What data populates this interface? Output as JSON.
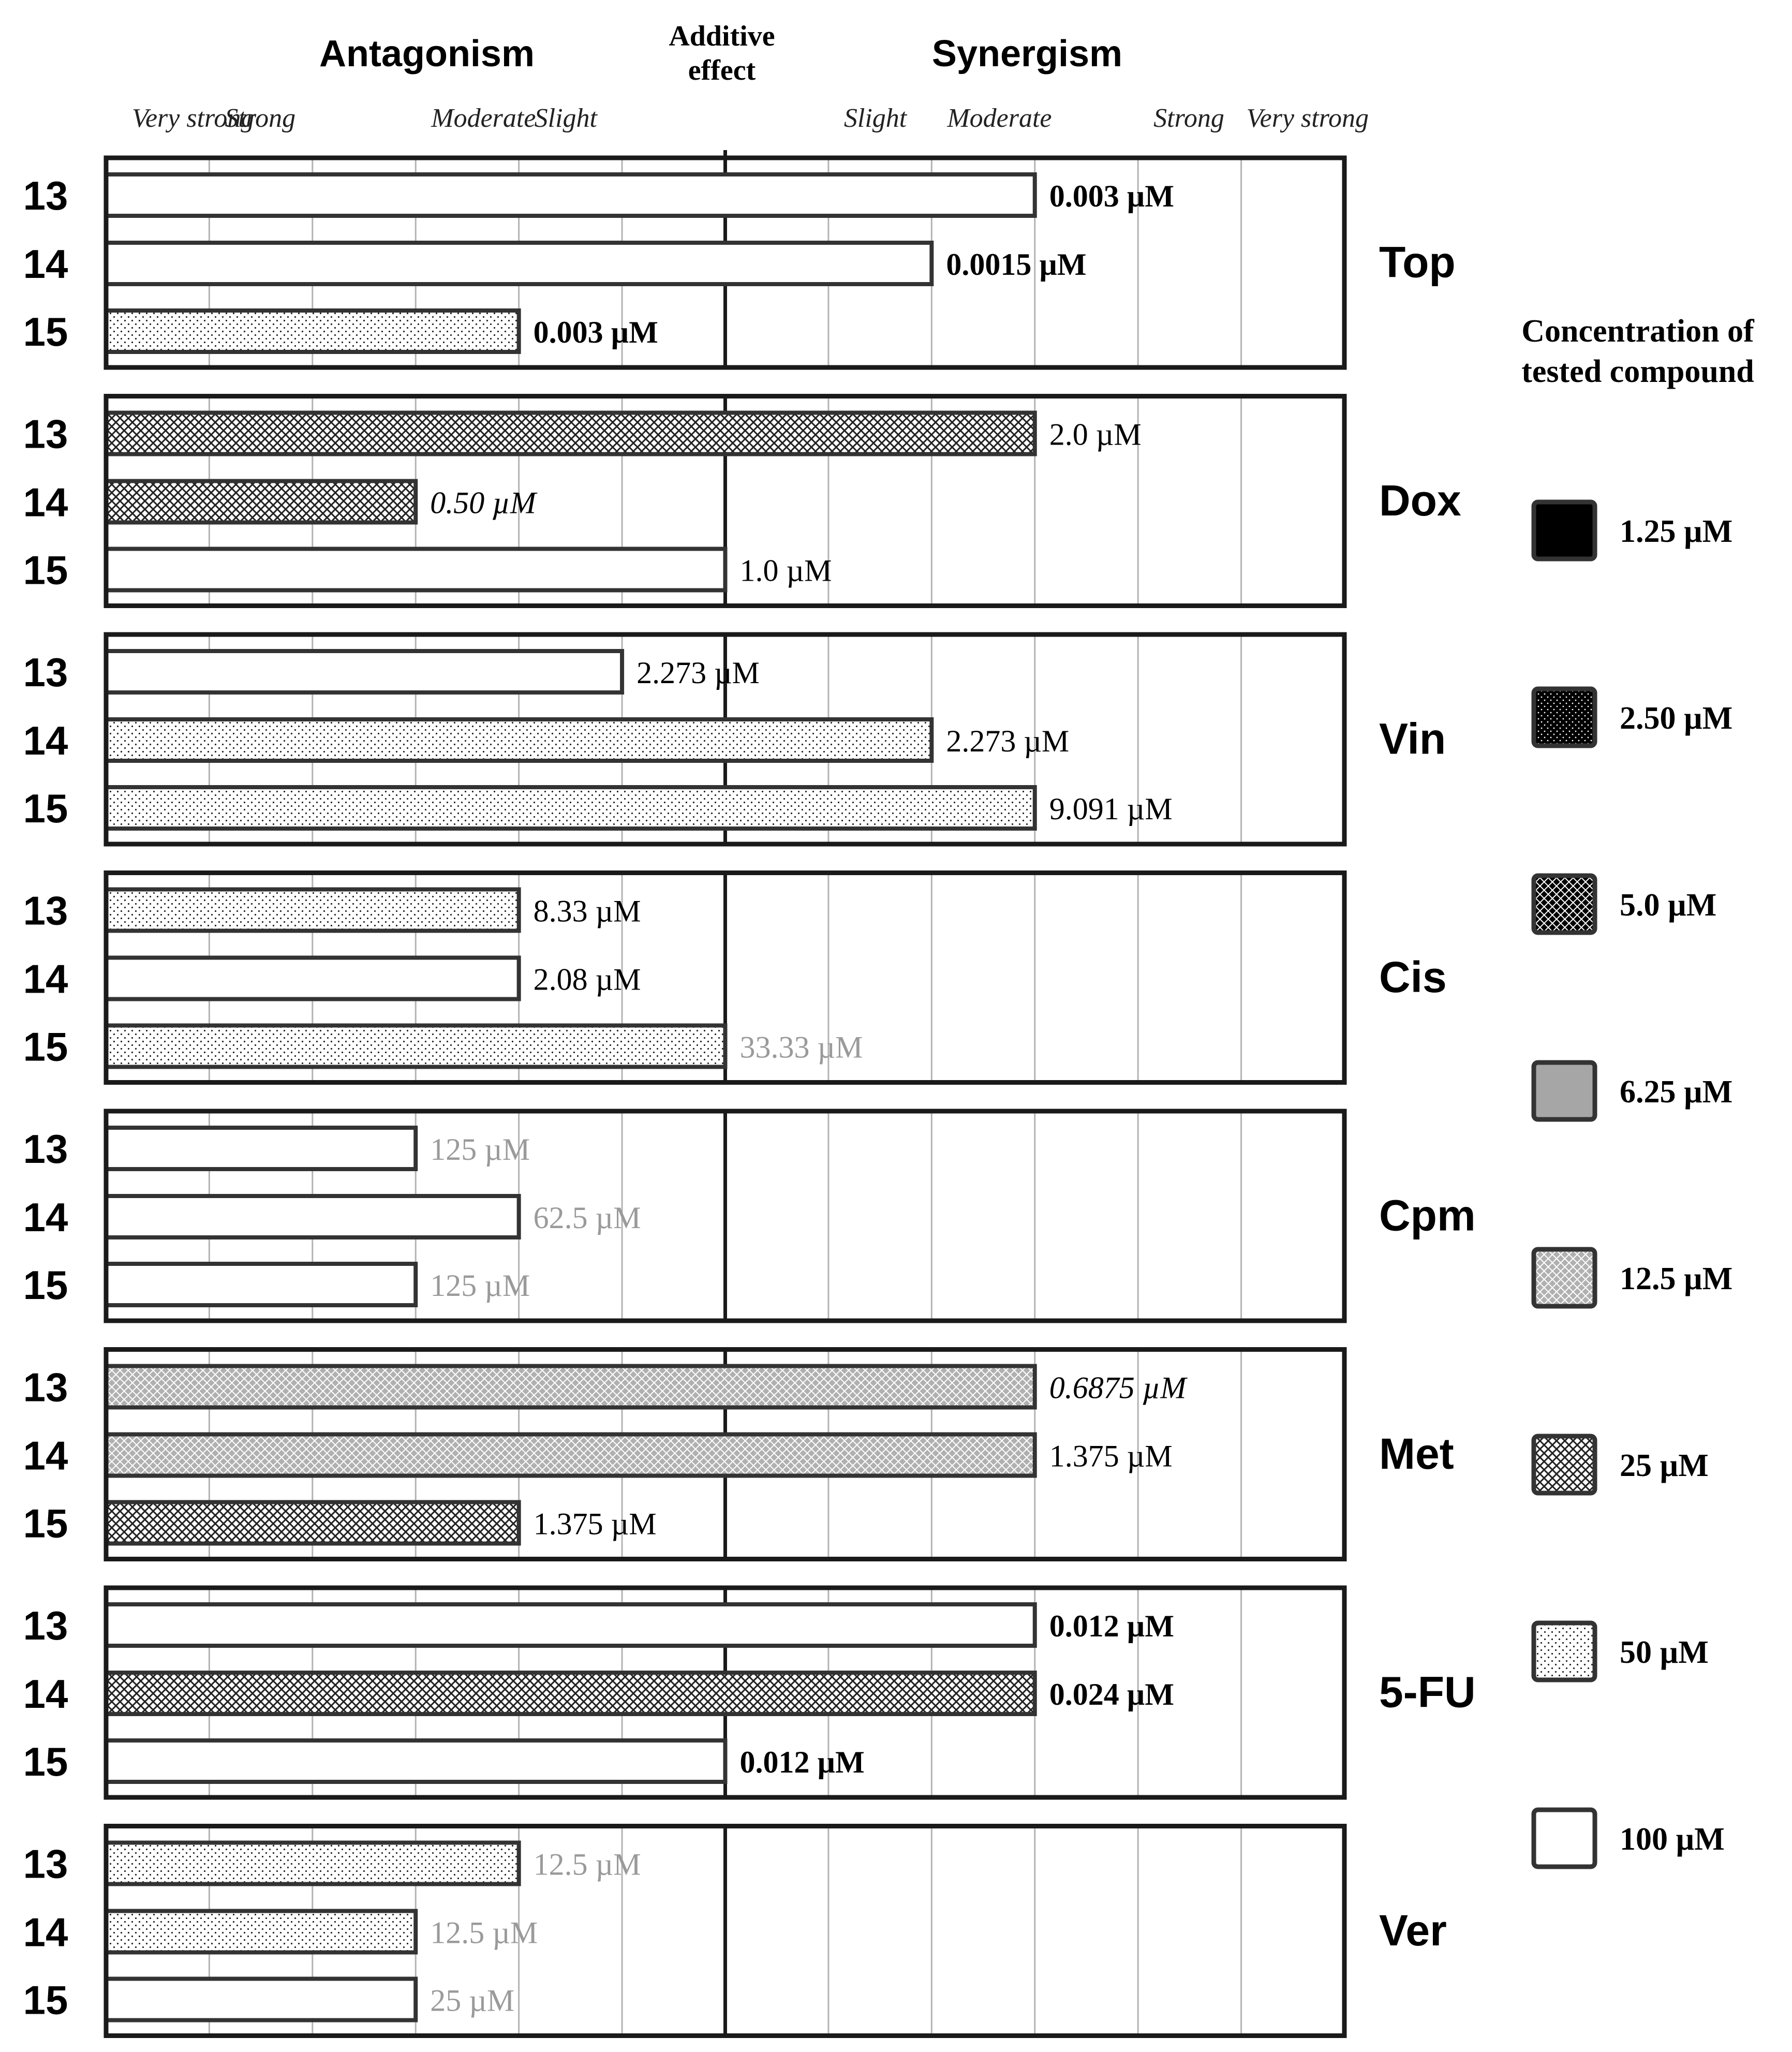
{
  "chart_data": {
    "type": "bar",
    "orientation": "horizontal",
    "groups_label": "Antagonism / Synergism",
    "header": {
      "antagonism": "Antagonism",
      "additive_line1": "Additive",
      "additive_line2": "effect",
      "synergism": "Synergism"
    },
    "scale_labels": [
      {
        "text": "Very strong",
        "pos": 0.1
      },
      {
        "text": "Strong",
        "pos": 1.0
      },
      {
        "text": "Moderate",
        "pos": 3.0
      },
      {
        "text": "Slight",
        "pos": 4.0
      },
      {
        "text": "Slight",
        "pos": 7.0
      },
      {
        "text": "Moderate",
        "pos": 8.0
      },
      {
        "text": "Strong",
        "pos": 10.0
      },
      {
        "text": "Very strong",
        "pos": 10.9
      }
    ],
    "scale_range": [
      0,
      12
    ],
    "additive_value": 6,
    "groups": [
      {
        "name": "Top",
        "bars": [
          {
            "compound": "13",
            "value": 9,
            "pattern": "100",
            "label": "0.003 µM",
            "label_style": "bold"
          },
          {
            "compound": "14",
            "value": 8,
            "pattern": "100",
            "label": "0.0015 µM",
            "label_style": "bold"
          },
          {
            "compound": "15",
            "value": 4,
            "pattern": "50",
            "label": "0.003 µM",
            "label_style": "bold"
          }
        ]
      },
      {
        "name": "Dox",
        "bars": [
          {
            "compound": "13",
            "value": 9,
            "pattern": "25",
            "label": "2.0 µM",
            "label_style": "normal"
          },
          {
            "compound": "14",
            "value": 3,
            "pattern": "25",
            "label": "0.50 µM",
            "label_style": "italic"
          },
          {
            "compound": "15",
            "value": 6,
            "pattern": "100",
            "label": "1.0 µM",
            "label_style": "normal"
          }
        ]
      },
      {
        "name": "Vin",
        "bars": [
          {
            "compound": "13",
            "value": 5,
            "pattern": "100",
            "label": "2.273 µM",
            "label_style": "normal"
          },
          {
            "compound": "14",
            "value": 8,
            "pattern": "50",
            "label": "2.273 µM",
            "label_style": "normal"
          },
          {
            "compound": "15",
            "value": 9,
            "pattern": "50",
            "label": "9.091 µM",
            "label_style": "normal"
          }
        ]
      },
      {
        "name": "Cis",
        "bars": [
          {
            "compound": "13",
            "value": 4,
            "pattern": "50",
            "label": "8.33 µM",
            "label_style": "normal"
          },
          {
            "compound": "14",
            "value": 4,
            "pattern": "100",
            "label": "2.08 µM",
            "label_style": "normal"
          },
          {
            "compound": "15",
            "value": 6,
            "pattern": "50",
            "label": "33.33 µM",
            "label_style": "gray"
          }
        ]
      },
      {
        "name": "Cpm",
        "bars": [
          {
            "compound": "13",
            "value": 3,
            "pattern": "100",
            "label": "125 µM",
            "label_style": "gray"
          },
          {
            "compound": "14",
            "value": 4,
            "pattern": "100",
            "label": "62.5 µM",
            "label_style": "gray"
          },
          {
            "compound": "15",
            "value": 3,
            "pattern": "100",
            "label": "125 µM",
            "label_style": "gray"
          }
        ]
      },
      {
        "name": "Met",
        "bars": [
          {
            "compound": "13",
            "value": 9,
            "pattern": "12.5",
            "label": "0.6875 µM",
            "label_style": "italic"
          },
          {
            "compound": "14",
            "value": 9,
            "pattern": "12.5",
            "label": "1.375 µM",
            "label_style": "normal"
          },
          {
            "compound": "15",
            "value": 4,
            "pattern": "25",
            "label": "1.375 µM",
            "label_style": "normal"
          }
        ]
      },
      {
        "name": "5-FU",
        "bars": [
          {
            "compound": "13",
            "value": 9,
            "pattern": "100",
            "label": "0.012 µM",
            "label_style": "bold"
          },
          {
            "compound": "14",
            "value": 9,
            "pattern": "25",
            "label": "0.024 µM",
            "label_style": "bold"
          },
          {
            "compound": "15",
            "value": 6,
            "pattern": "100",
            "label": "0.012 µM",
            "label_style": "bold"
          }
        ]
      },
      {
        "name": "Ver",
        "bars": [
          {
            "compound": "13",
            "value": 4,
            "pattern": "50",
            "label": "12.5 µM",
            "label_style": "gray"
          },
          {
            "compound": "14",
            "value": 3,
            "pattern": "50",
            "label": "12.5 µM",
            "label_style": "gray"
          },
          {
            "compound": "15",
            "value": 3,
            "pattern": "100",
            "label": "25 µM",
            "label_style": "gray"
          }
        ]
      }
    ],
    "legend": {
      "title_line1": "Concentration of",
      "title_line2": "tested compound",
      "placement": "right",
      "items": [
        {
          "key": "1.25",
          "label": "1.25 µM",
          "fill": "#000000"
        },
        {
          "key": "2.50",
          "label": "2.50 µM",
          "fill": "#000000"
        },
        {
          "key": "5.0",
          "label": "5.0 µM",
          "fill": "#000000"
        },
        {
          "key": "6.25",
          "label": "6.25 µM",
          "fill": "#a6a6a6"
        },
        {
          "key": "12.5",
          "label": "12.5 µM",
          "fill": "#a6a6a6"
        },
        {
          "key": "25",
          "label": "25 µM",
          "fill": "#ffffff"
        },
        {
          "key": "50",
          "label": "50 µM",
          "fill": "#ffffff"
        },
        {
          "key": "100",
          "label": "100 µM",
          "fill": "#ffffff"
        }
      ]
    },
    "colors": {
      "bar_stroke": "#333333",
      "frame": "#1a1a1a",
      "grid": "#b3b3b3",
      "label_dark": "#000000",
      "label_gray": "#9a9a9a"
    }
  }
}
